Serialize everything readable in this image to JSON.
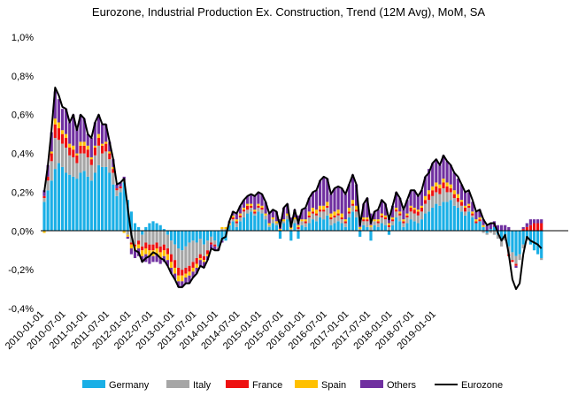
{
  "chart_data": {
    "type": "bar",
    "subtype": "stacked-bar-with-line",
    "title": "Eurozone, Industrial Production Ex. Construction, Trend (12M Avg), MoM, SA",
    "xlabel": "",
    "ylabel": "",
    "ylim": [
      -0.4,
      1.0
    ],
    "y_ticks": [
      -0.4,
      -0.2,
      0.0,
      0.2,
      0.4,
      0.6,
      0.8,
      1.0
    ],
    "y_tick_labels": [
      "-0,4%",
      "-0,2%",
      "0,0%",
      "0,2%",
      "0,4%",
      "0,6%",
      "0,8%",
      "1,0%"
    ],
    "x_tick_labels": [
      "2010-01-01",
      "2010-07-01",
      "2011-01-01",
      "2011-07-01",
      "2012-01-01",
      "2012-07-01",
      "2013-01-01",
      "2013-07-01",
      "2014-01-01",
      "2014-07-01",
      "2015-01-01",
      "2015-07-01",
      "2016-01-01",
      "2016-07-01",
      "2017-01-01",
      "2017-07-01",
      "2018-01-01",
      "2018-07-01",
      "2019-01-01"
    ],
    "x_start": "2010-01",
    "frequency": "monthly",
    "grid": false,
    "legend_position": "bottom",
    "colors": {
      "Germany": "#1aafe6",
      "Italy": "#a6a6a6",
      "France": "#ee1111",
      "Spain": "#ffc000",
      "Others": "#7030a0",
      "Eurozone": "#000000"
    },
    "series": [
      {
        "name": "Germany",
        "kind": "bar",
        "values": [
          0.15,
          0.21,
          0.26,
          0.32,
          0.35,
          0.33,
          0.3,
          0.29,
          0.28,
          0.27,
          0.3,
          0.31,
          0.28,
          0.26,
          0.3,
          0.34,
          0.33,
          0.33,
          0.3,
          0.24,
          0.18,
          0.2,
          0.25,
          0.16,
          0.1,
          0.04,
          0.02,
          -0.02,
          0.02,
          0.04,
          0.05,
          0.04,
          0.03,
          0.01,
          -0.02,
          -0.05,
          -0.07,
          -0.09,
          -0.1,
          -0.08,
          -0.06,
          -0.05,
          -0.06,
          -0.04,
          -0.07,
          -0.05,
          -0.03,
          -0.05,
          -0.08,
          -0.05,
          -0.05,
          0.03,
          0.05,
          0.02,
          0.05,
          0.07,
          0.09,
          0.1,
          0.08,
          0.1,
          0.09,
          0.06,
          0.02,
          0.04,
          0.03,
          -0.04,
          0.04,
          0.06,
          -0.05,
          0.04,
          -0.04,
          0.03,
          0.02,
          0.04,
          0.06,
          0.05,
          0.07,
          0.06,
          0.08,
          0.03,
          0.04,
          0.05,
          0.04,
          0.02,
          0.07,
          0.1,
          0.07,
          -0.03,
          0.03,
          0.02,
          -0.05,
          0.03,
          0.02,
          0.04,
          0.03,
          -0.02,
          0.03,
          0.07,
          0.05,
          0.02,
          0.04,
          0.06,
          0.05,
          0.04,
          0.06,
          0.09,
          0.1,
          0.12,
          0.14,
          0.13,
          0.15,
          0.15,
          0.16,
          0.13,
          0.12,
          0.1,
          0.08,
          0.1,
          0.07,
          0.04,
          0.05,
          0.02,
          -0.01,
          0.01,
          0.02,
          -0.02,
          -0.05,
          -0.02,
          -0.08,
          -0.11,
          -0.13,
          -0.12,
          -0.07,
          -0.04,
          -0.07,
          -0.1,
          -0.12,
          -0.14
        ]
      },
      {
        "name": "Italy",
        "kind": "bar",
        "values": [
          0.02,
          0.05,
          0.1,
          0.16,
          0.12,
          0.12,
          0.13,
          0.1,
          0.1,
          0.08,
          0.1,
          0.09,
          0.1,
          0.08,
          0.09,
          0.1,
          0.07,
          0.08,
          0.07,
          0.06,
          0.03,
          0.02,
          0.01,
          -0.02,
          -0.06,
          -0.07,
          -0.05,
          -0.06,
          -0.06,
          -0.07,
          -0.07,
          -0.06,
          -0.08,
          -0.07,
          -0.07,
          -0.07,
          -0.08,
          -0.1,
          -0.1,
          -0.11,
          -0.12,
          -0.11,
          -0.08,
          -0.08,
          -0.06,
          -0.05,
          -0.03,
          -0.02,
          -0.01,
          0.01,
          0.01,
          0.0,
          0.01,
          0.02,
          0.02,
          0.03,
          0.02,
          0.02,
          0.01,
          0.02,
          0.02,
          0.02,
          0.01,
          0.02,
          0.01,
          0.0,
          0.01,
          0.02,
          0.01,
          0.02,
          0.01,
          0.02,
          0.02,
          0.03,
          0.03,
          0.03,
          0.03,
          0.04,
          0.04,
          0.03,
          0.03,
          0.03,
          0.02,
          0.02,
          0.02,
          0.03,
          0.03,
          0.01,
          0.02,
          0.03,
          0.02,
          0.02,
          0.02,
          0.03,
          0.03,
          0.02,
          0.02,
          0.03,
          0.03,
          0.02,
          0.03,
          0.04,
          0.04,
          0.04,
          0.04,
          0.05,
          0.06,
          0.06,
          0.06,
          0.06,
          0.07,
          0.05,
          0.04,
          0.04,
          0.03,
          0.03,
          0.02,
          0.02,
          0.01,
          0.0,
          0.0,
          -0.01,
          -0.01,
          -0.01,
          -0.02,
          -0.02,
          -0.03,
          -0.03,
          -0.04,
          -0.04,
          -0.04,
          -0.03,
          -0.02,
          -0.01,
          0.0,
          0.0,
          0.0,
          -0.01
        ]
      },
      {
        "name": "France",
        "kind": "bar",
        "values": [
          0.01,
          0.02,
          0.04,
          0.07,
          0.06,
          0.05,
          0.05,
          0.04,
          0.04,
          0.04,
          0.04,
          0.04,
          0.04,
          0.03,
          0.04,
          0.04,
          0.04,
          0.04,
          0.03,
          0.02,
          0.01,
          0.01,
          0.0,
          0.0,
          -0.01,
          -0.01,
          -0.02,
          -0.02,
          -0.03,
          -0.03,
          -0.03,
          -0.03,
          -0.03,
          -0.03,
          -0.03,
          -0.04,
          -0.04,
          -0.04,
          -0.03,
          -0.03,
          -0.03,
          -0.03,
          -0.03,
          -0.02,
          -0.02,
          -0.02,
          -0.01,
          -0.01,
          0.0,
          0.0,
          0.0,
          0.0,
          0.01,
          0.01,
          0.01,
          0.01,
          0.02,
          0.01,
          0.01,
          0.01,
          0.01,
          0.0,
          0.0,
          0.0,
          0.0,
          0.0,
          0.0,
          0.0,
          0.0,
          0.0,
          0.01,
          0.0,
          0.01,
          0.01,
          0.01,
          0.01,
          0.01,
          0.01,
          0.01,
          0.01,
          0.01,
          0.01,
          0.01,
          0.01,
          0.01,
          0.01,
          0.01,
          0.0,
          0.01,
          0.01,
          0.0,
          0.0,
          0.01,
          0.01,
          0.01,
          0.01,
          0.01,
          0.01,
          0.01,
          0.01,
          0.01,
          0.02,
          0.02,
          0.02,
          0.02,
          0.02,
          0.03,
          0.03,
          0.03,
          0.03,
          0.03,
          0.03,
          0.02,
          0.02,
          0.02,
          0.02,
          0.02,
          0.01,
          0.01,
          0.01,
          0.01,
          0.0,
          0.0,
          0.0,
          0.0,
          0.0,
          0.0,
          0.0,
          -0.01,
          -0.01,
          -0.01,
          0.0,
          0.01,
          0.02,
          0.03,
          0.04,
          0.04,
          0.04
        ]
      },
      {
        "name": "Spain",
        "kind": "bar",
        "values": [
          -0.01,
          0.0,
          0.01,
          0.03,
          0.03,
          0.02,
          0.02,
          0.02,
          0.02,
          0.01,
          0.02,
          0.02,
          0.02,
          0.01,
          0.01,
          0.02,
          0.01,
          0.01,
          0.01,
          0.01,
          0.0,
          0.0,
          -0.01,
          -0.01,
          -0.02,
          -0.02,
          -0.02,
          -0.03,
          -0.03,
          -0.03,
          -0.03,
          -0.03,
          -0.03,
          -0.03,
          -0.03,
          -0.03,
          -0.03,
          -0.03,
          -0.03,
          -0.02,
          -0.02,
          -0.02,
          -0.02,
          -0.01,
          -0.01,
          -0.01,
          0.0,
          0.0,
          0.0,
          0.01,
          0.01,
          0.01,
          0.01,
          0.01,
          0.01,
          0.01,
          0.01,
          0.01,
          0.01,
          0.01,
          0.01,
          0.01,
          0.01,
          0.01,
          0.01,
          0.01,
          0.01,
          0.01,
          0.01,
          0.01,
          0.01,
          0.01,
          0.01,
          0.02,
          0.02,
          0.02,
          0.02,
          0.02,
          0.02,
          0.02,
          0.02,
          0.02,
          0.02,
          0.01,
          0.02,
          0.02,
          0.02,
          0.01,
          0.01,
          0.01,
          0.01,
          0.01,
          0.01,
          0.01,
          0.01,
          0.01,
          0.01,
          0.01,
          0.01,
          0.01,
          0.01,
          0.01,
          0.01,
          0.01,
          0.01,
          0.02,
          0.02,
          0.02,
          0.02,
          0.02,
          0.02,
          0.02,
          0.02,
          0.02,
          0.02,
          0.01,
          0.01,
          0.01,
          0.01,
          0.01,
          0.01,
          0.01,
          0.0,
          0.0,
          0.0,
          0.0,
          0.0,
          0.0,
          0.0,
          0.0,
          0.0,
          0.0,
          0.0,
          0.0,
          0.0,
          0.0,
          0.0,
          0.0
        ]
      },
      {
        "name": "Others",
        "kind": "bar",
        "values": [
          0.03,
          0.06,
          0.1,
          0.14,
          0.12,
          0.11,
          0.13,
          0.11,
          0.16,
          0.13,
          0.14,
          0.12,
          0.06,
          0.1,
          0.12,
          0.1,
          0.1,
          0.09,
          0.05,
          0.04,
          0.02,
          0.02,
          0.02,
          -0.01,
          -0.03,
          -0.04,
          -0.04,
          -0.03,
          -0.04,
          -0.04,
          -0.03,
          -0.04,
          -0.03,
          -0.03,
          -0.03,
          -0.03,
          -0.03,
          -0.03,
          -0.03,
          -0.03,
          -0.04,
          -0.03,
          -0.03,
          -0.03,
          -0.03,
          -0.02,
          -0.02,
          -0.02,
          -0.01,
          -0.01,
          0.0,
          0.01,
          0.02,
          0.03,
          0.04,
          0.04,
          0.04,
          0.05,
          0.07,
          0.06,
          0.06,
          0.06,
          0.05,
          0.04,
          0.05,
          0.05,
          0.06,
          0.05,
          0.05,
          0.04,
          0.05,
          0.05,
          0.06,
          0.07,
          0.08,
          0.1,
          0.13,
          0.15,
          0.12,
          0.1,
          0.12,
          0.12,
          0.13,
          0.13,
          0.12,
          0.13,
          0.11,
          0.04,
          0.07,
          0.1,
          0.06,
          0.04,
          0.05,
          0.07,
          0.06,
          0.04,
          0.06,
          0.08,
          0.07,
          0.05,
          0.07,
          0.08,
          0.09,
          0.07,
          0.08,
          0.1,
          0.11,
          0.12,
          0.12,
          0.1,
          0.12,
          0.11,
          0.1,
          0.09,
          0.08,
          0.08,
          0.07,
          0.06,
          0.05,
          0.04,
          0.04,
          0.03,
          0.03,
          0.03,
          0.03,
          0.03,
          0.03,
          0.03,
          0.02,
          0.0,
          -0.01,
          0.0,
          0.01,
          0.02,
          0.03,
          0.02,
          0.02,
          0.02
        ]
      },
      {
        "name": "Eurozone",
        "kind": "line",
        "values": [
          0.2,
          0.34,
          0.52,
          0.74,
          0.7,
          0.64,
          0.63,
          0.56,
          0.6,
          0.52,
          0.6,
          0.58,
          0.5,
          0.48,
          0.56,
          0.6,
          0.55,
          0.55,
          0.46,
          0.37,
          0.24,
          0.25,
          0.27,
          0.12,
          -0.02,
          -0.1,
          -0.11,
          -0.16,
          -0.14,
          -0.13,
          -0.11,
          -0.12,
          -0.14,
          -0.15,
          -0.18,
          -0.22,
          -0.25,
          -0.29,
          -0.29,
          -0.27,
          -0.27,
          -0.24,
          -0.22,
          -0.18,
          -0.19,
          -0.15,
          -0.09,
          -0.1,
          -0.1,
          -0.04,
          -0.03,
          0.05,
          0.1,
          0.09,
          0.13,
          0.16,
          0.18,
          0.19,
          0.18,
          0.2,
          0.19,
          0.15,
          0.09,
          0.11,
          0.1,
          0.02,
          0.12,
          0.14,
          0.02,
          0.11,
          0.04,
          0.11,
          0.12,
          0.17,
          0.2,
          0.21,
          0.26,
          0.28,
          0.27,
          0.19,
          0.22,
          0.23,
          0.22,
          0.19,
          0.24,
          0.29,
          0.24,
          0.03,
          0.14,
          0.17,
          0.04,
          0.1,
          0.11,
          0.16,
          0.14,
          0.06,
          0.13,
          0.2,
          0.17,
          0.11,
          0.16,
          0.21,
          0.21,
          0.18,
          0.21,
          0.28,
          0.3,
          0.35,
          0.37,
          0.34,
          0.39,
          0.36,
          0.34,
          0.3,
          0.28,
          0.24,
          0.2,
          0.21,
          0.16,
          0.1,
          0.11,
          0.06,
          0.03,
          0.04,
          0.04,
          -0.01,
          -0.05,
          -0.02,
          -0.12,
          -0.25,
          -0.3,
          -0.27,
          -0.12,
          -0.03,
          -0.05,
          -0.06,
          -0.07,
          -0.09
        ]
      }
    ]
  }
}
